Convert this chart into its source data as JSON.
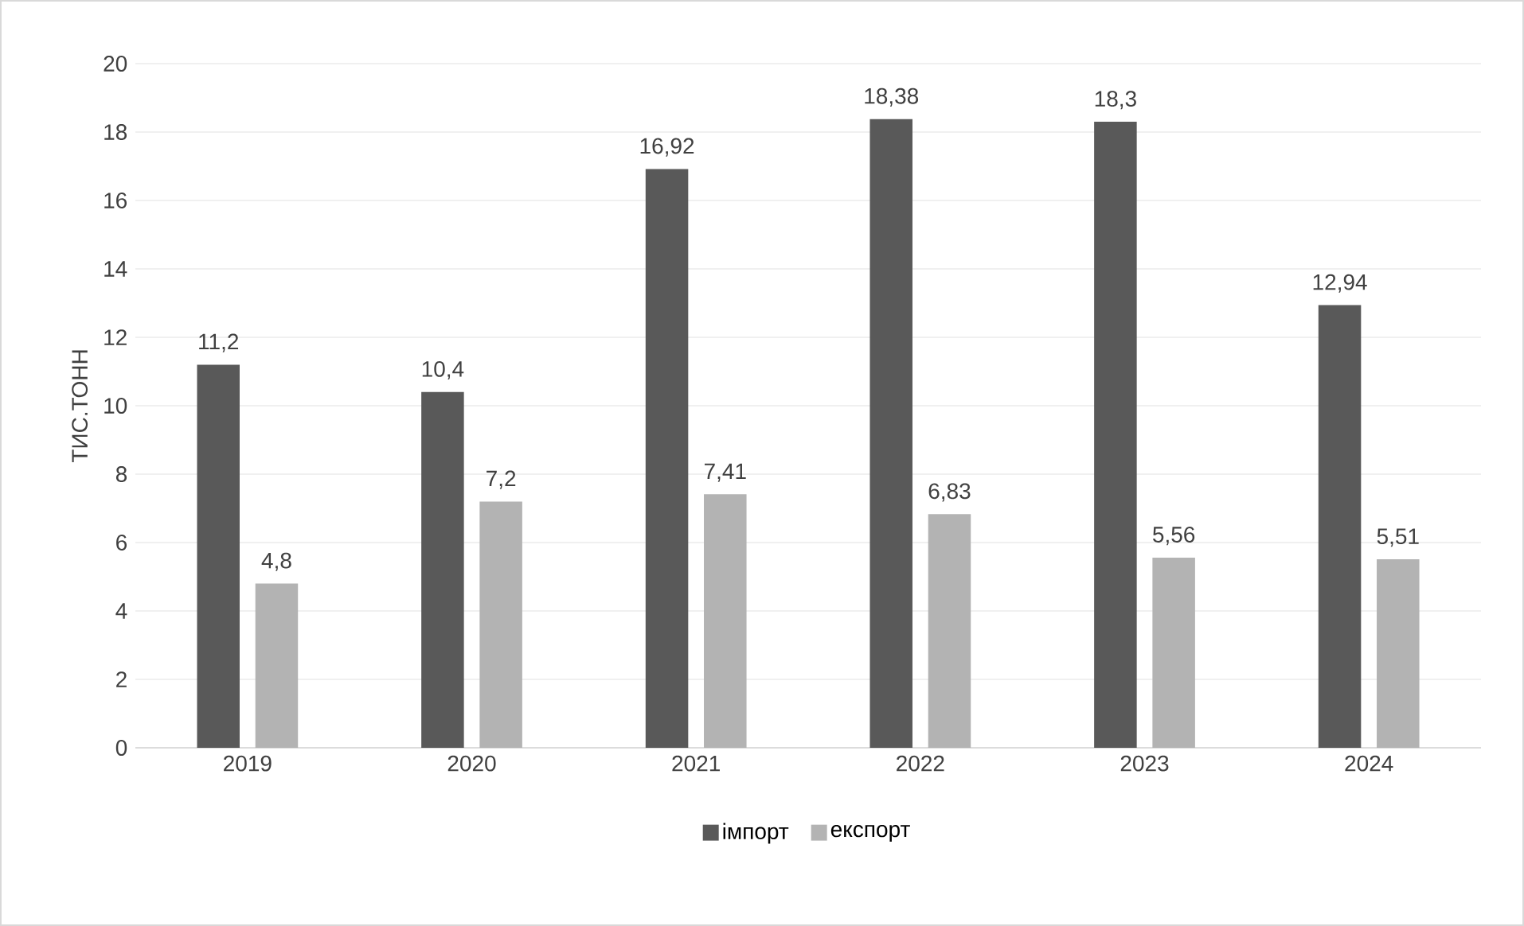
{
  "chart_data": {
    "type": "bar",
    "ylabel": "ТИС.ТОНН",
    "categories": [
      "2019",
      "2020",
      "2021",
      "2022",
      "2023",
      "2024"
    ],
    "series": [
      {
        "name": "імпорт",
        "color": "#595959",
        "values": [
          11.2,
          10.4,
          16.92,
          18.38,
          18.3,
          12.94
        ],
        "value_labels": [
          "11,2",
          "10,4",
          "16,92",
          "18,38",
          "18,3",
          "12,94"
        ]
      },
      {
        "name": "експорт",
        "color": "#b3b3b3",
        "values": [
          4.8,
          7.2,
          7.41,
          6.83,
          5.56,
          5.51
        ],
        "value_labels": [
          "4,8",
          "7,2",
          "7,41",
          "6,83",
          "5,56",
          "5,51"
        ]
      }
    ],
    "ylim": [
      0,
      20
    ],
    "yticks": [
      0,
      2,
      4,
      6,
      8,
      10,
      12,
      14,
      16,
      18,
      20
    ],
    "grid": "y",
    "legend": "bottom"
  }
}
